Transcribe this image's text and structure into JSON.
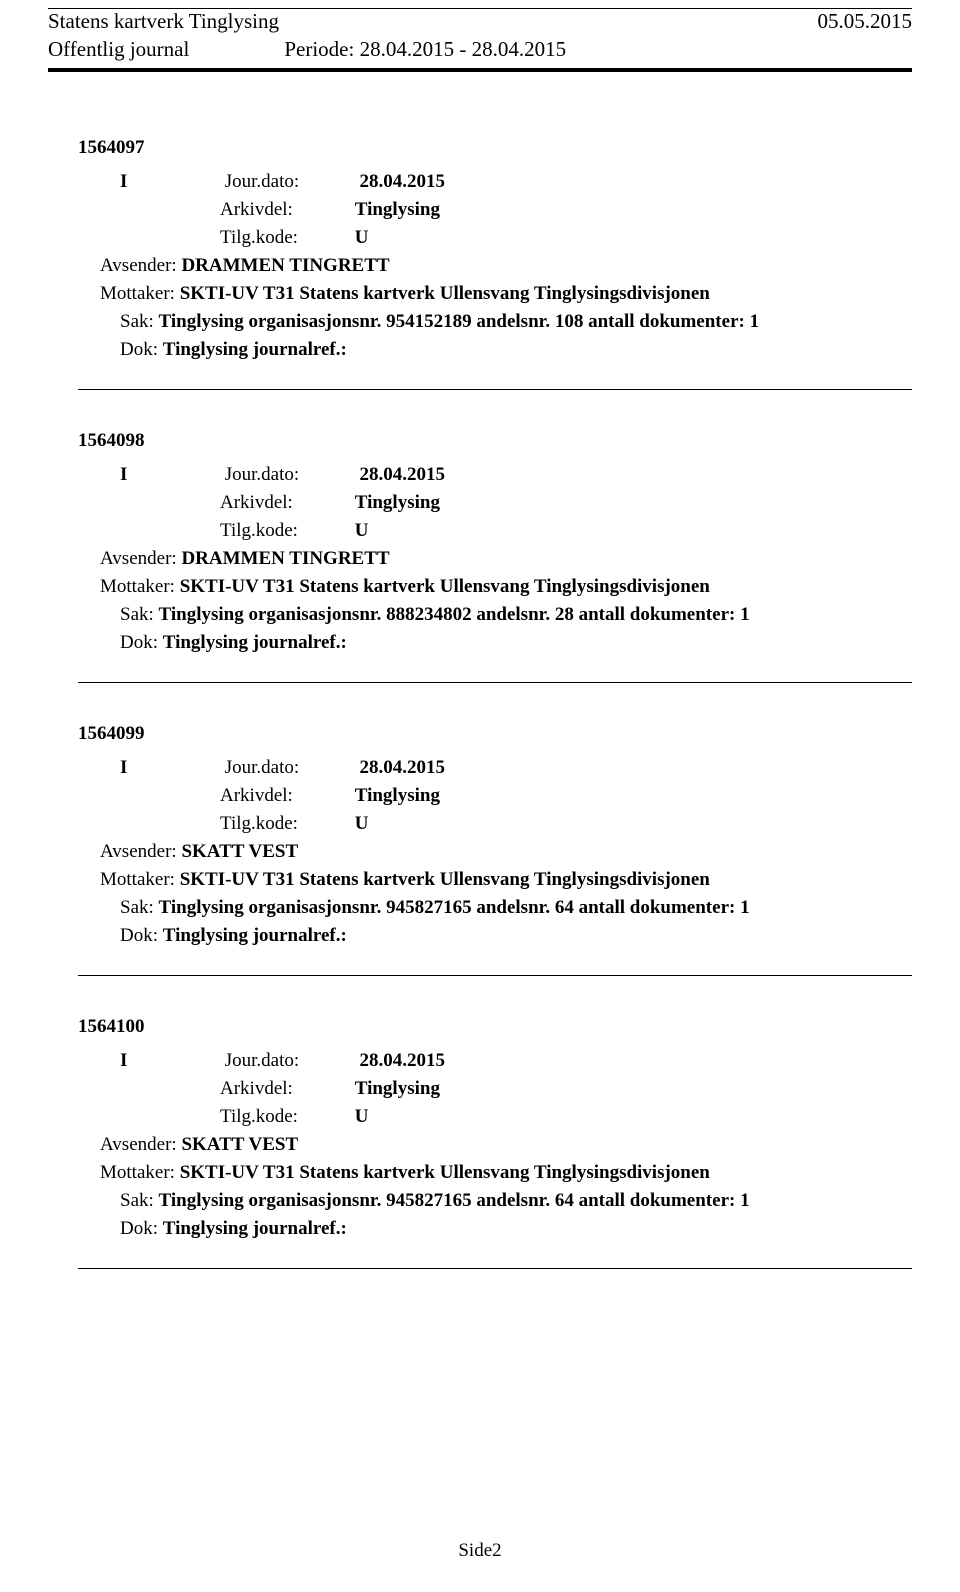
{
  "header": {
    "title": "Statens kartverk Tinglysing",
    "date": "05.05.2015",
    "subtitle": "Offentlig journal",
    "period_label": "Periode:",
    "period_value": "28.04.2015 - 28.04.2015"
  },
  "labels": {
    "jour_dato": "Jour.dato:",
    "arkivdel": "Arkivdel:",
    "tilgkode": "Tilg.kode:",
    "avsender": "Avsender:",
    "mottaker": "Mottaker:",
    "sak": "Sak:",
    "dok": "Dok:"
  },
  "entries": [
    {
      "id": "1564097",
      "io": "I",
      "jour_dato": "28.04.2015",
      "arkivdel": "Tinglysing",
      "tilgkode": "U",
      "avsender": "DRAMMEN TINGRETT",
      "mottaker": "SKTI-UV T31 Statens kartverk Ullensvang Tinglysingsdivisjonen",
      "sak": "Tinglysing organisasjonsnr. 954152189 andelsnr. 108 antall dokumenter: 1",
      "dok": "Tinglysing journalref.:"
    },
    {
      "id": "1564098",
      "io": "I",
      "jour_dato": "28.04.2015",
      "arkivdel": "Tinglysing",
      "tilgkode": "U",
      "avsender": "DRAMMEN TINGRETT",
      "mottaker": "SKTI-UV T31 Statens kartverk Ullensvang Tinglysingsdivisjonen",
      "sak": "Tinglysing organisasjonsnr. 888234802 andelsnr. 28 antall dokumenter: 1",
      "dok": "Tinglysing journalref.:"
    },
    {
      "id": "1564099",
      "io": "I",
      "jour_dato": "28.04.2015",
      "arkivdel": "Tinglysing",
      "tilgkode": "U",
      "avsender": "SKATT VEST",
      "mottaker": "SKTI-UV T31 Statens kartverk Ullensvang Tinglysingsdivisjonen",
      "sak": "Tinglysing organisasjonsnr. 945827165 andelsnr. 64 antall dokumenter: 1",
      "dok": "Tinglysing journalref.:"
    },
    {
      "id": "1564100",
      "io": "I",
      "jour_dato": "28.04.2015",
      "arkivdel": "Tinglysing",
      "tilgkode": "U",
      "avsender": "SKATT VEST",
      "mottaker": "SKTI-UV T31 Statens kartverk Ullensvang Tinglysingsdivisjonen",
      "sak": "Tinglysing organisasjonsnr. 945827165 andelsnr. 64 antall dokumenter: 1",
      "dok": "Tinglysing journalref.:"
    }
  ],
  "footer": {
    "page": "Side2"
  }
}
